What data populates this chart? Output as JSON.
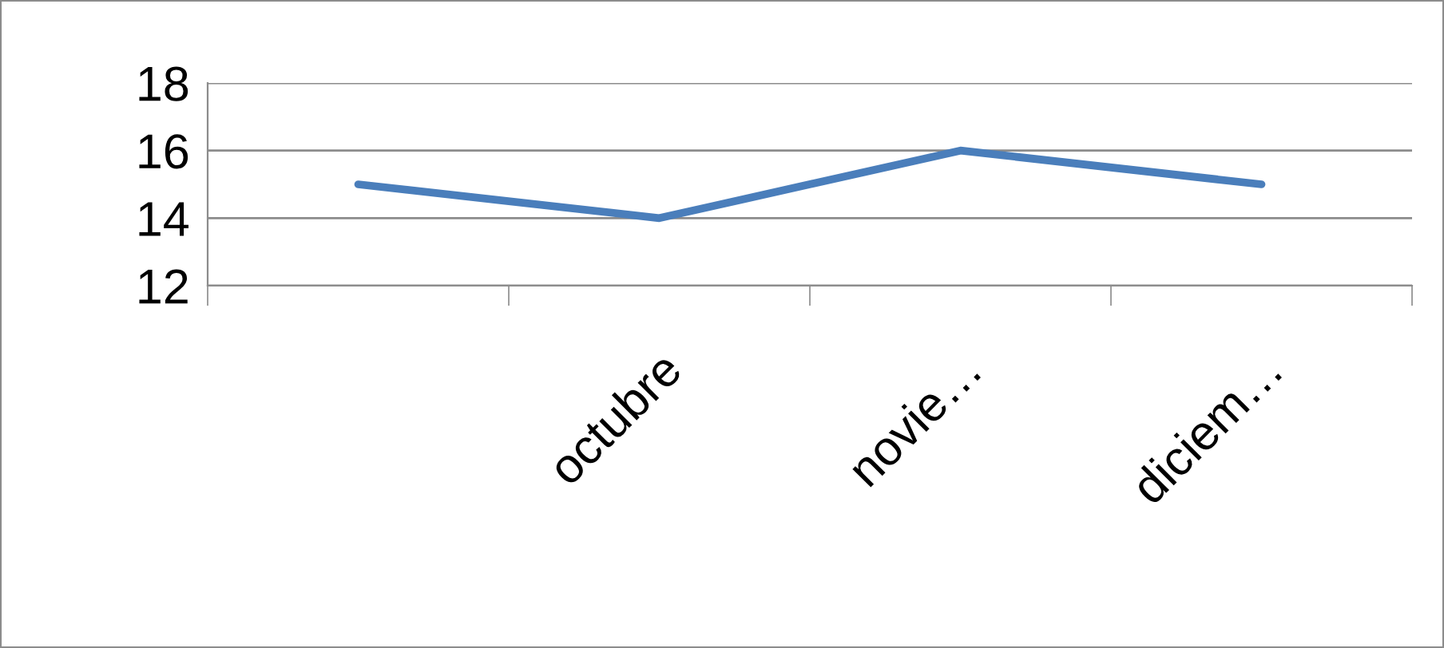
{
  "chart_data": {
    "type": "line",
    "categories": [
      null,
      "octubre",
      "novie…",
      "diciem…"
    ],
    "series": [
      {
        "color": "#4a7ebb",
        "values": [
          15,
          14,
          16,
          15
        ]
      }
    ],
    "ylim": [
      12,
      18
    ],
    "yticks": [
      12,
      14,
      16,
      18
    ],
    "grid": "y",
    "legend": false,
    "marker": "none",
    "line_style": "solid"
  }
}
